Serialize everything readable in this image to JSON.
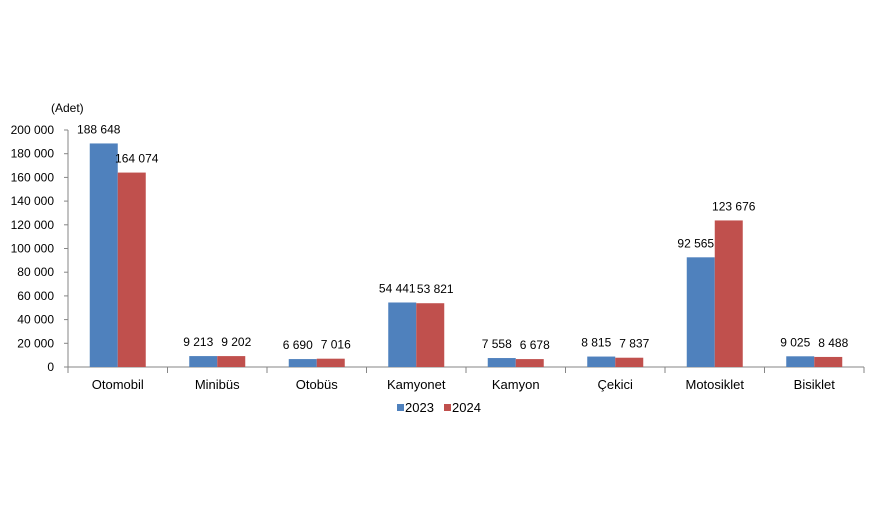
{
  "chart_data": {
    "type": "bar",
    "unit_label": "(Adet)",
    "categories": [
      "Otomobil",
      "Minibüs",
      "Otobüs",
      "Kamyonet",
      "Kamyon",
      "Çekici",
      "Motosiklet",
      "Bisiklet"
    ],
    "series": [
      {
        "name": "2023",
        "color": "#4F81BD",
        "values": [
          188648,
          9213,
          6690,
          54441,
          7558,
          8815,
          92565,
          9025
        ],
        "labels": [
          "188 648",
          "9 213",
          "6 690",
          "54 441",
          "7 558",
          "8 815",
          "92 565",
          "9 025"
        ]
      },
      {
        "name": "2024",
        "color": "#C0504D",
        "values": [
          164074,
          9202,
          7016,
          53821,
          6678,
          7837,
          123676,
          8488
        ],
        "labels": [
          "164 074",
          "9 202",
          "7 016",
          "53 821",
          "6 678",
          "7 837",
          "123 676",
          "8 488"
        ]
      }
    ],
    "ylim": [
      0,
      200000
    ],
    "yticks": [
      0,
      20000,
      40000,
      60000,
      80000,
      100000,
      120000,
      140000,
      160000,
      180000,
      200000
    ],
    "ytick_labels": [
      "0",
      "20 000",
      "40 000",
      "60 000",
      "80 000",
      "100 000",
      "120 000",
      "140 000",
      "160 000",
      "180 000",
      "200 000"
    ],
    "grid": false,
    "legend_position": "bottom"
  }
}
